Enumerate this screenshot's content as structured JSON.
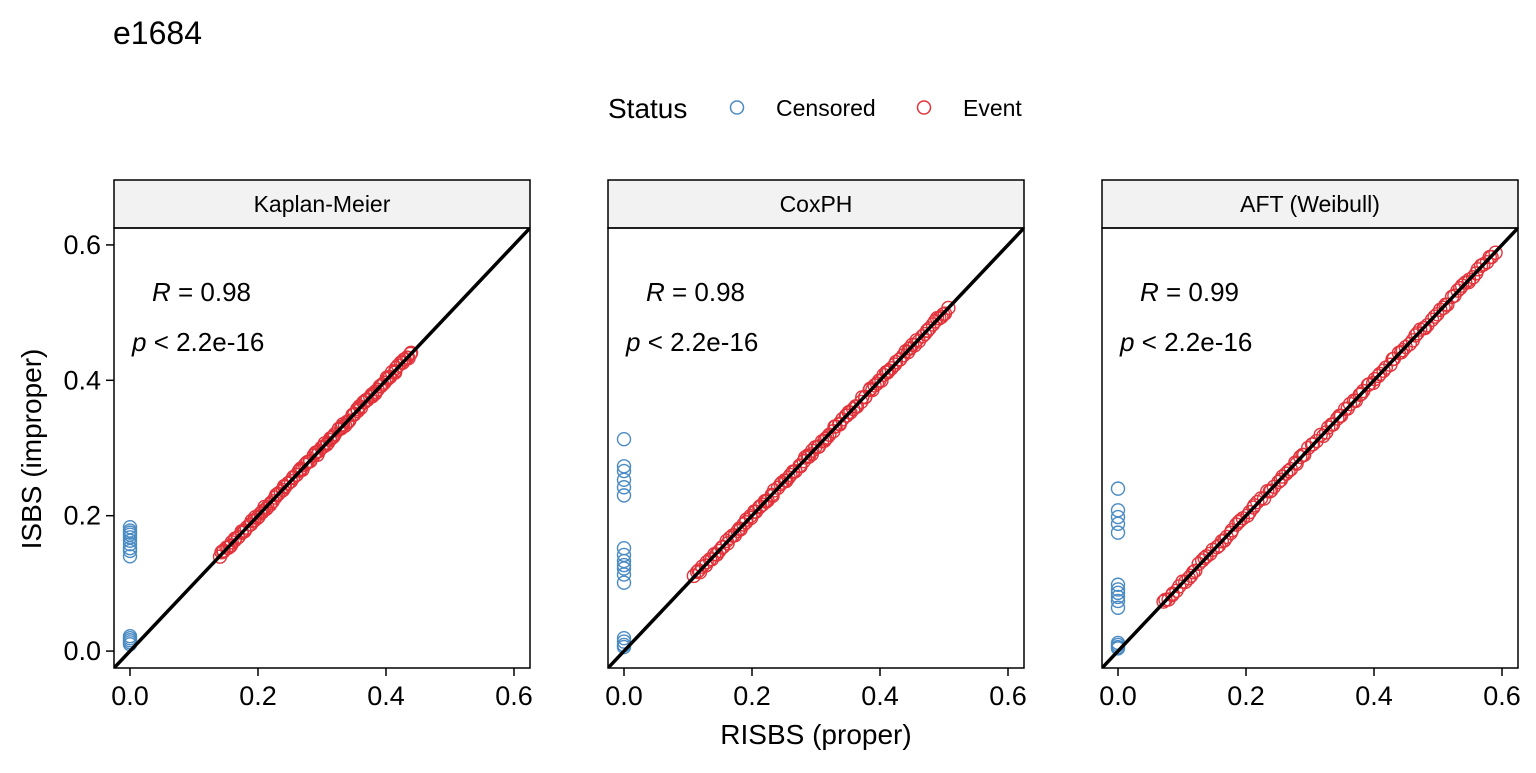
{
  "chart_data": {
    "type": "scatter",
    "title": "e1684",
    "xlabel": "RISBS (proper)",
    "ylabel": "ISBS (improper)",
    "xlim": [
      -0.025,
      0.625
    ],
    "ylim": [
      -0.025,
      0.625
    ],
    "xticks": [
      "0.0",
      "0.2",
      "0.4",
      "0.6"
    ],
    "yticks": [
      "0.0",
      "0.2",
      "0.4",
      "0.6"
    ],
    "legend": {
      "title": "Status",
      "position": "top",
      "entries": [
        {
          "label": "Censored",
          "color": "#4a8bc4"
        },
        {
          "label": "Event",
          "color": "#e3333b"
        }
      ]
    },
    "reference_line": "y = x",
    "grid": false,
    "facets": [
      {
        "label": "Kaplan-Meier",
        "annotation": {
          "r_label": "R",
          "r_value": "= 0.98",
          "p_label": "p",
          "p_value": "< 2.2e-16"
        },
        "censored": {
          "x": [
            0,
            0,
            0,
            0,
            0,
            0,
            0,
            0,
            0,
            0,
            0,
            0,
            0,
            0,
            0
          ],
          "y": [
            0.183,
            0.178,
            0.175,
            0.172,
            0.168,
            0.163,
            0.158,
            0.152,
            0.148,
            0.14,
            0.022,
            0.019,
            0.016,
            0.013,
            0.01
          ]
        },
        "event_range": [
          0.14,
          0.44
        ]
      },
      {
        "label": "CoxPH",
        "annotation": {
          "r_label": "R",
          "r_value": "= 0.98",
          "p_label": "p",
          "p_value": "< 2.2e-16"
        },
        "censored": {
          "x": [
            0,
            0,
            0,
            0,
            0,
            0,
            0,
            0,
            0,
            0,
            0,
            0,
            0,
            0,
            0,
            0,
            0
          ],
          "y": [
            0.313,
            0.273,
            0.266,
            0.253,
            0.242,
            0.23,
            0.152,
            0.142,
            0.133,
            0.127,
            0.122,
            0.113,
            0.101,
            0.019,
            0.014,
            0.009,
            0.006
          ]
        },
        "event_range": [
          0.11,
          0.505
        ]
      },
      {
        "label": "AFT (Weibull)",
        "annotation": {
          "r_label": "R",
          "r_value": "= 0.99",
          "p_label": "p",
          "p_value": "< 2.2e-16"
        },
        "censored": {
          "x": [
            0,
            0,
            0,
            0,
            0,
            0,
            0,
            0,
            0,
            0,
            0,
            0,
            0,
            0,
            0
          ],
          "y": [
            0.24,
            0.208,
            0.198,
            0.188,
            0.175,
            0.098,
            0.091,
            0.086,
            0.08,
            0.074,
            0.064,
            0.012,
            0.009,
            0.006,
            0.004
          ]
        },
        "event_range": [
          0.07,
          0.59
        ]
      }
    ]
  }
}
